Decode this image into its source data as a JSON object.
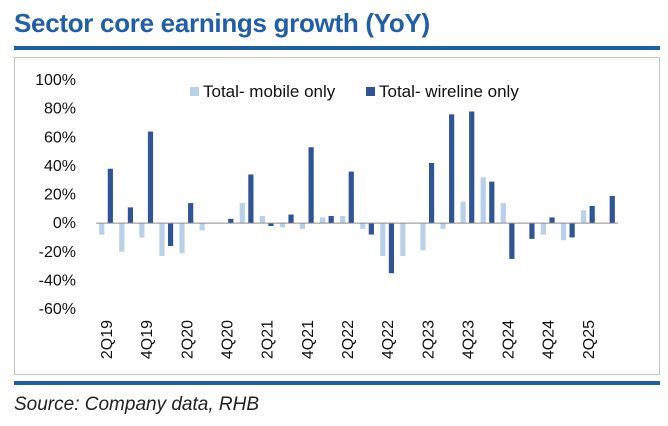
{
  "title": "Sector core earnings growth (YoY)",
  "source": "Source: Company data, RHB",
  "colors": {
    "mobile": "#b9d0eb",
    "wireline": "#2f5597",
    "accent": "#1f5fa8"
  },
  "chart_data": {
    "type": "bar",
    "title": "Sector core earnings growth (YoY)",
    "xlabel": "",
    "ylabel": "",
    "ylim": [
      -60,
      100
    ],
    "yticks": [
      -60,
      -40,
      -20,
      0,
      20,
      40,
      60,
      80,
      100
    ],
    "ytick_labels": [
      "-60%",
      "-40%",
      "-20%",
      "0%",
      "20%",
      "40%",
      "60%",
      "80%",
      "100%"
    ],
    "legend_position": "top",
    "categories": [
      "2Q19",
      "3Q19",
      "4Q19",
      "1Q20",
      "2Q20",
      "3Q20",
      "4Q20",
      "1Q21",
      "2Q21",
      "3Q21",
      "4Q21",
      "1Q22",
      "2Q22",
      "3Q22",
      "4Q22",
      "1Q23",
      "2Q23",
      "3Q23",
      "4Q23",
      "1Q24",
      "2Q24",
      "3Q24",
      "4Q24",
      "1Q25",
      "2Q25",
      "3Q25"
    ],
    "tick_labels": [
      "2Q19",
      "",
      "4Q19",
      "",
      "2Q20",
      "",
      "4Q20",
      "",
      "2Q21",
      "",
      "4Q21",
      "",
      "2Q22",
      "",
      "4Q22",
      "",
      "2Q23",
      "",
      "4Q23",
      "",
      "2Q24",
      "",
      "4Q24",
      "",
      "2Q25",
      ""
    ],
    "series": [
      {
        "name": "Total- mobile only",
        "values": [
          -8,
          -20,
          -10,
          -23,
          -21,
          -5,
          0,
          14,
          5,
          -3,
          -4,
          4,
          5,
          -4,
          -23,
          -23,
          -19,
          -4,
          15,
          32,
          14,
          0,
          -8,
          -12,
          9,
          0
        ]
      },
      {
        "name": "Total- wireline only",
        "values": [
          38,
          11,
          64,
          -16,
          14,
          0,
          3,
          34,
          -2,
          6,
          53,
          5,
          36,
          -8,
          -35,
          0,
          42,
          76,
          78,
          29,
          -25,
          -11,
          4,
          -10,
          12,
          19
        ]
      }
    ]
  }
}
